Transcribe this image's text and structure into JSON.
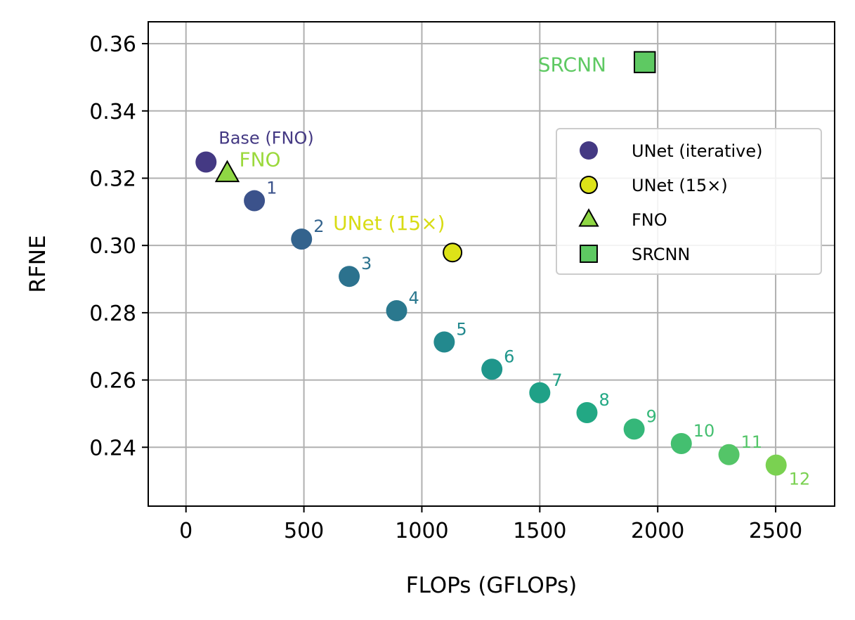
{
  "chart_data": {
    "type": "scatter",
    "xlabel": "FLOPs (GFLOPs)",
    "ylabel": "RFNE",
    "xlim": [
      -160,
      2750
    ],
    "ylim": [
      0.2225,
      0.3665
    ],
    "x_ticks": [
      {
        "value": 0,
        "label": "0"
      },
      {
        "value": 500,
        "label": "500"
      },
      {
        "value": 1000,
        "label": "1000"
      },
      {
        "value": 1500,
        "label": "1500"
      },
      {
        "value": 2000,
        "label": "2000"
      },
      {
        "value": 2500,
        "label": "2500"
      }
    ],
    "y_ticks": [
      {
        "value": 0.24,
        "label": "0.24"
      },
      {
        "value": 0.26,
        "label": "0.26"
      },
      {
        "value": 0.28,
        "label": "0.28"
      },
      {
        "value": 0.3,
        "label": "0.30"
      },
      {
        "value": 0.32,
        "label": "0.32"
      },
      {
        "value": 0.34,
        "label": "0.34"
      },
      {
        "value": 0.36,
        "label": "0.36"
      }
    ],
    "grid": true,
    "legend": {
      "position": "upper-right",
      "entries": [
        {
          "label": "UNet (iterative)",
          "marker": "circle",
          "color": "#443983",
          "edge": "none"
        },
        {
          "label": "UNet (15×)",
          "marker": "circle",
          "color": "#dde318",
          "edge": "#000000"
        },
        {
          "label": "FNO",
          "marker": "triangle",
          "color": "#8fd744",
          "edge": "#000000"
        },
        {
          "label": "SRCNN",
          "marker": "square",
          "color": "#5ec962",
          "edge": "#000000"
        }
      ]
    },
    "series": [
      {
        "name": "UNet (iterative)",
        "marker": "circle",
        "points": [
          {
            "x": 85,
            "y": 0.3248,
            "label": "Base (FNO)",
            "color": "#443983",
            "label_pos": "above-right"
          },
          {
            "x": 290,
            "y": 0.3133,
            "label": "1",
            "color": "#3b528b",
            "label_pos": "right"
          },
          {
            "x": 490,
            "y": 0.3019,
            "label": "2",
            "color": "#33638d",
            "label_pos": "right"
          },
          {
            "x": 692,
            "y": 0.2908,
            "label": "3",
            "color": "#2c728e",
            "label_pos": "right"
          },
          {
            "x": 893,
            "y": 0.2806,
            "label": "4",
            "color": "#2a788e",
            "label_pos": "right"
          },
          {
            "x": 1095,
            "y": 0.2713,
            "label": "5",
            "color": "#23898e",
            "label_pos": "right"
          },
          {
            "x": 1297,
            "y": 0.2632,
            "label": "6",
            "color": "#1f968b",
            "label_pos": "right"
          },
          {
            "x": 1500,
            "y": 0.2562,
            "label": "7",
            "color": "#1fa187",
            "label_pos": "right"
          },
          {
            "x": 1700,
            "y": 0.2503,
            "label": "8",
            "color": "#22a884",
            "label_pos": "right"
          },
          {
            "x": 1900,
            "y": 0.2454,
            "label": "9",
            "color": "#35b779",
            "label_pos": "right"
          },
          {
            "x": 2100,
            "y": 0.2411,
            "label": "10",
            "color": "#44bf70",
            "label_pos": "right"
          },
          {
            "x": 2302,
            "y": 0.2378,
            "label": "11",
            "color": "#54c568",
            "label_pos": "right"
          },
          {
            "x": 2502,
            "y": 0.2347,
            "label": "12",
            "color": "#7ad151",
            "label_pos": "below-right"
          }
        ]
      },
      {
        "name": "UNet (15×)",
        "marker": "circle",
        "points": [
          {
            "x": 1130,
            "y": 0.2979,
            "label": "UNet (15×)",
            "color": "#dde318",
            "text_color": "#d8dc14",
            "label_pos": "above-left"
          }
        ]
      },
      {
        "name": "FNO",
        "marker": "triangle",
        "points": [
          {
            "x": 175,
            "y": 0.3215,
            "label": "FNO",
            "color": "#8fd744",
            "text_color": "#9bd93c",
            "label_pos": "right"
          }
        ]
      },
      {
        "name": "SRCNN",
        "marker": "square",
        "points": [
          {
            "x": 1945,
            "y": 0.3545,
            "label": "SRCNN",
            "color": "#5ec962",
            "text_color": "#5ec962",
            "label_pos": "left"
          }
        ]
      }
    ]
  }
}
